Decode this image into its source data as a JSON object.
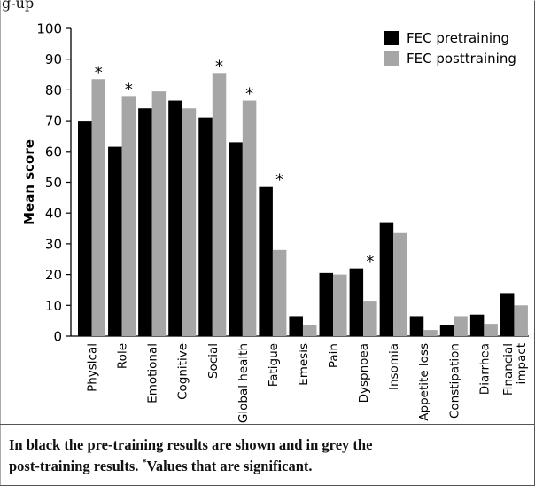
{
  "figure": {
    "top_fragment": "g-up",
    "caption": {
      "line1": "In black the pre-training results are shown and in grey the",
      "line2_pre": "post-training results. ",
      "line2_mark": "*",
      "line2_post": "Values that are significant."
    }
  },
  "chart_data": {
    "type": "bar",
    "ylabel": "Mean score",
    "xlabel": "",
    "ylim": [
      0,
      100
    ],
    "yticks": [
      0,
      10,
      20,
      30,
      40,
      50,
      60,
      70,
      80,
      90,
      100
    ],
    "grid": false,
    "legend_position": "top-right",
    "categories": [
      "Physical",
      "Role",
      "Emotional",
      "Cognitive",
      "Social",
      "Global health",
      "Fatigue",
      "Emesis",
      "Pain",
      "Dyspnoea",
      "Insomia",
      "Appetite loss",
      "Constipation",
      "Diarrhea",
      "Financial impact"
    ],
    "category_lines": [
      [
        "Physical"
      ],
      [
        "Role"
      ],
      [
        "Emotional"
      ],
      [
        "Cognitive"
      ],
      [
        "Social"
      ],
      [
        "Global health"
      ],
      [
        "Fatigue"
      ],
      [
        "Emesis"
      ],
      [
        "Pain"
      ],
      [
        "Dyspnoea"
      ],
      [
        "Insomia"
      ],
      [
        "Appetite loss"
      ],
      [
        "Constipation"
      ],
      [
        "Diarrhea"
      ],
      [
        "Financial",
        "impact"
      ]
    ],
    "series": [
      {
        "name": "FEC pretraining",
        "color": "#000000",
        "values": [
          70,
          61.5,
          74,
          76.5,
          71,
          63,
          48.5,
          6.5,
          20.5,
          22,
          37,
          6.5,
          3.5,
          7,
          14
        ]
      },
      {
        "name": "FEC posttraining",
        "color": "#a6a6a6",
        "values": [
          83.5,
          78,
          79.5,
          74,
          85.5,
          76.5,
          28,
          3.5,
          20,
          11.5,
          33.5,
          2,
          6.5,
          4,
          10
        ]
      }
    ],
    "significance_marker": "*",
    "significant_categories": [
      "Physical",
      "Role",
      "Social",
      "Global health",
      "Fatigue",
      "Dyspnoea"
    ]
  }
}
